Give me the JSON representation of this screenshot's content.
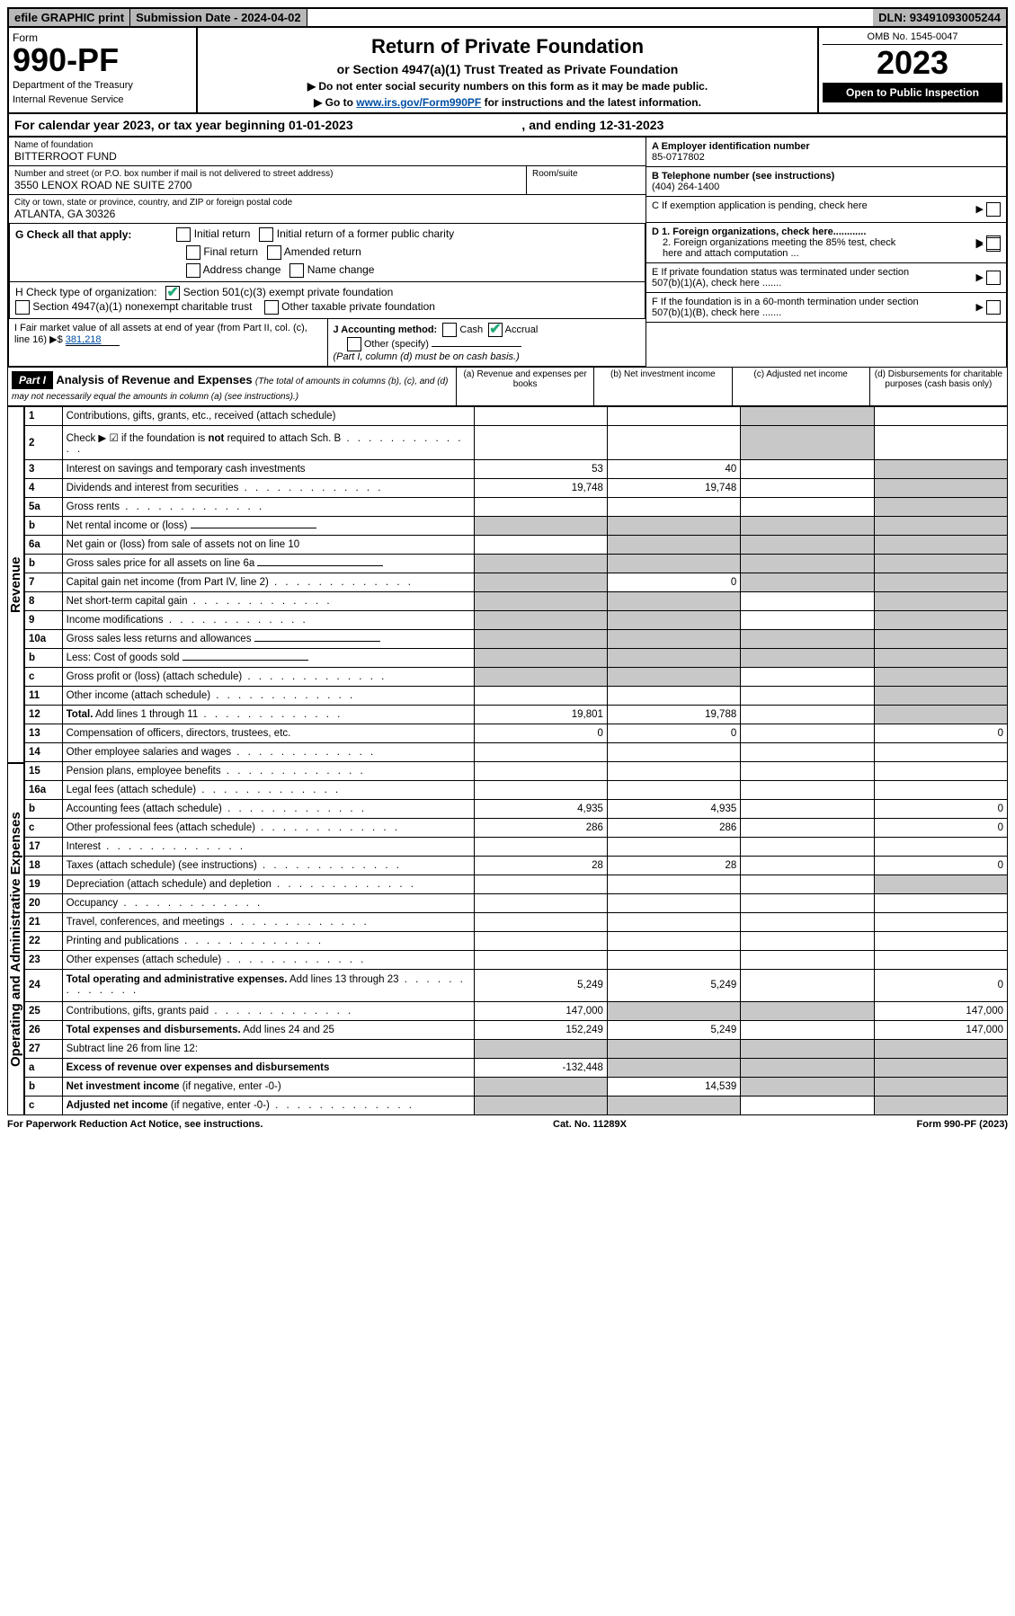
{
  "topbar": {
    "efile": "efile GRAPHIC print",
    "submission": "Submission Date - 2024-04-02",
    "dln": "DLN: 93491093005244"
  },
  "header": {
    "form_label": "Form",
    "form_no": "990-PF",
    "dept": "Department of the Treasury",
    "irs": "Internal Revenue Service",
    "title": "Return of Private Foundation",
    "subtitle": "or Section 4947(a)(1) Trust Treated as Private Foundation",
    "note1": "▶ Do not enter social security numbers on this form as it may be made public.",
    "note2_pre": "▶ Go to ",
    "note2_link": "www.irs.gov/Form990PF",
    "note2_post": " for instructions and the latest information.",
    "omb": "OMB No. 1545-0047",
    "year": "2023",
    "open": "Open to Public Inspection"
  },
  "calyear": {
    "pre": "For calendar year 2023, or tax year beginning ",
    "begin": "01-01-2023",
    "mid": " , and ending ",
    "end": "12-31-2023"
  },
  "info": {
    "name_lbl": "Name of foundation",
    "name": "BITTERROOT FUND",
    "addr_lbl": "Number and street (or P.O. box number if mail is not delivered to street address)",
    "addr": "3550 LENOX ROAD NE SUITE 2700",
    "room_lbl": "Room/suite",
    "city_lbl": "City or town, state or province, country, and ZIP or foreign postal code",
    "city": "ATLANTA, GA  30326",
    "a_lbl": "A Employer identification number",
    "a_val": "85-0717802",
    "b_lbl": "B Telephone number (see instructions)",
    "b_val": "(404) 264-1400",
    "c_lbl": "C If exemption application is pending, check here",
    "d1_lbl": "D 1. Foreign organizations, check here............",
    "d2_lbl": "2. Foreign organizations meeting the 85% test, check here and attach computation ...",
    "e_lbl": "E  If private foundation status was terminated under section 507(b)(1)(A), check here .......",
    "f_lbl": "F  If the foundation is in a 60-month termination under section 507(b)(1)(B), check here .......",
    "g_lbl": "G Check all that apply:",
    "g_opts": [
      "Initial return",
      "Initial return of a former public charity",
      "Final return",
      "Amended return",
      "Address change",
      "Name change"
    ],
    "h_lbl": "H Check type of organization:",
    "h_opt1": "Section 501(c)(3) exempt private foundation",
    "h_opt2": "Section 4947(a)(1) nonexempt charitable trust",
    "h_opt3": "Other taxable private foundation",
    "i_lbl": "I Fair market value of all assets at end of year (from Part II, col. (c), line 16)",
    "i_val": "381,218",
    "j_lbl": "J Accounting method:",
    "j_opts": [
      "Cash",
      "Accrual",
      "Other (specify)"
    ],
    "j_note": "(Part I, column (d) must be on cash basis.)"
  },
  "part1": {
    "label": "Part I",
    "title": "Analysis of Revenue and Expenses",
    "desc": "(The total of amounts in columns (b), (c), and (d) may not necessarily equal the amounts in column (a) (see instructions).)",
    "cols": {
      "a": "(a)   Revenue and expenses per books",
      "b": "(b)   Net investment income",
      "c": "(c)   Adjusted net income",
      "d": "(d)   Disbursements for charitable purposes (cash basis only)"
    }
  },
  "side": {
    "revenue": "Revenue",
    "expenses": "Operating and Administrative Expenses"
  },
  "rows": [
    {
      "n": "1",
      "d": "Contributions, gifts, grants, etc., received (attach schedule)",
      "a": "",
      "b": "",
      "c": "gray",
      "dd": ""
    },
    {
      "n": "2",
      "d": "Check ▶ ☑ if the foundation is <b>not</b> required to attach Sch. B",
      "dots": true,
      "a": "",
      "b": "",
      "c": "gray",
      "dd": "",
      "nob": true
    },
    {
      "n": "3",
      "d": "Interest on savings and temporary cash investments",
      "a": "53",
      "b": "40",
      "c": "",
      "dd": "gray"
    },
    {
      "n": "4",
      "d": "Dividends and interest from securities",
      "dots": true,
      "a": "19,748",
      "b": "19,748",
      "c": "",
      "dd": "gray"
    },
    {
      "n": "5a",
      "d": "Gross rents",
      "dots": true,
      "a": "",
      "b": "",
      "c": "",
      "dd": "gray"
    },
    {
      "n": "b",
      "d": "Net rental income or (loss)",
      "uline": true,
      "a": "gray",
      "b": "gray",
      "c": "gray",
      "dd": "gray"
    },
    {
      "n": "6a",
      "d": "Net gain or (loss) from sale of assets not on line 10",
      "a": "",
      "b": "gray",
      "c": "gray",
      "dd": "gray"
    },
    {
      "n": "b",
      "d": "Gross sales price for all assets on line 6a",
      "uline": true,
      "a": "gray",
      "b": "gray",
      "c": "gray",
      "dd": "gray"
    },
    {
      "n": "7",
      "d": "Capital gain net income (from Part IV, line 2)",
      "dots": true,
      "a": "gray",
      "b": "0",
      "c": "gray",
      "dd": "gray"
    },
    {
      "n": "8",
      "d": "Net short-term capital gain",
      "dots": true,
      "a": "gray",
      "b": "gray",
      "c": "",
      "dd": "gray"
    },
    {
      "n": "9",
      "d": "Income modifications",
      "dots": true,
      "a": "gray",
      "b": "gray",
      "c": "",
      "dd": "gray"
    },
    {
      "n": "10a",
      "d": "Gross sales less returns and allowances",
      "uline": true,
      "a": "gray",
      "b": "gray",
      "c": "gray",
      "dd": "gray"
    },
    {
      "n": "b",
      "d": "Less: Cost of goods sold",
      "dots": true,
      "uline": true,
      "a": "gray",
      "b": "gray",
      "c": "gray",
      "dd": "gray"
    },
    {
      "n": "c",
      "d": "Gross profit or (loss) (attach schedule)",
      "dots": true,
      "a": "gray",
      "b": "gray",
      "c": "",
      "dd": "gray"
    },
    {
      "n": "11",
      "d": "Other income (attach schedule)",
      "dots": true,
      "a": "",
      "b": "",
      "c": "",
      "dd": "gray"
    },
    {
      "n": "12",
      "d": "<b>Total.</b> Add lines 1 through 11",
      "dots": true,
      "a": "19,801",
      "b": "19,788",
      "c": "",
      "dd": "gray"
    },
    {
      "n": "13",
      "d": "Compensation of officers, directors, trustees, etc.",
      "a": "0",
      "b": "0",
      "c": "",
      "dd": "0"
    },
    {
      "n": "14",
      "d": "Other employee salaries and wages",
      "dots": true,
      "a": "",
      "b": "",
      "c": "",
      "dd": ""
    },
    {
      "n": "15",
      "d": "Pension plans, employee benefits",
      "dots": true,
      "a": "",
      "b": "",
      "c": "",
      "dd": ""
    },
    {
      "n": "16a",
      "d": "Legal fees (attach schedule)",
      "dots": true,
      "a": "",
      "b": "",
      "c": "",
      "dd": ""
    },
    {
      "n": "b",
      "d": "Accounting fees (attach schedule)",
      "dots": true,
      "a": "4,935",
      "b": "4,935",
      "c": "",
      "dd": "0"
    },
    {
      "n": "c",
      "d": "Other professional fees (attach schedule)",
      "dots": true,
      "a": "286",
      "b": "286",
      "c": "",
      "dd": "0"
    },
    {
      "n": "17",
      "d": "Interest",
      "dots": true,
      "a": "",
      "b": "",
      "c": "",
      "dd": ""
    },
    {
      "n": "18",
      "d": "Taxes (attach schedule) (see instructions)",
      "dots": true,
      "a": "28",
      "b": "28",
      "c": "",
      "dd": "0"
    },
    {
      "n": "19",
      "d": "Depreciation (attach schedule) and depletion",
      "dots": true,
      "a": "",
      "b": "",
      "c": "",
      "dd": "gray"
    },
    {
      "n": "20",
      "d": "Occupancy",
      "dots": true,
      "a": "",
      "b": "",
      "c": "",
      "dd": ""
    },
    {
      "n": "21",
      "d": "Travel, conferences, and meetings",
      "dots": true,
      "a": "",
      "b": "",
      "c": "",
      "dd": ""
    },
    {
      "n": "22",
      "d": "Printing and publications",
      "dots": true,
      "a": "",
      "b": "",
      "c": "",
      "dd": ""
    },
    {
      "n": "23",
      "d": "Other expenses (attach schedule)",
      "dots": true,
      "a": "",
      "b": "",
      "c": "",
      "dd": ""
    },
    {
      "n": "24",
      "d": "<b>Total operating and administrative expenses.</b> Add lines 13 through 23",
      "dots": true,
      "a": "5,249",
      "b": "5,249",
      "c": "",
      "dd": "0"
    },
    {
      "n": "25",
      "d": "Contributions, gifts, grants paid",
      "dots": true,
      "a": "147,000",
      "b": "gray",
      "c": "gray",
      "dd": "147,000"
    },
    {
      "n": "26",
      "d": "<b>Total expenses and disbursements.</b> Add lines 24 and 25",
      "a": "152,249",
      "b": "5,249",
      "c": "",
      "dd": "147,000"
    },
    {
      "n": "27",
      "d": "Subtract line 26 from line 12:",
      "a": "gray",
      "b": "gray",
      "c": "gray",
      "dd": "gray"
    },
    {
      "n": "a",
      "d": "<b>Excess of revenue over expenses and disbursements</b>",
      "a": "-132,448",
      "b": "gray",
      "c": "gray",
      "dd": "gray"
    },
    {
      "n": "b",
      "d": "<b>Net investment income</b> (if negative, enter -0-)",
      "a": "gray",
      "b": "14,539",
      "c": "gray",
      "dd": "gray"
    },
    {
      "n": "c",
      "d": "<b>Adjusted net income</b> (if negative, enter -0-)",
      "dots": true,
      "a": "gray",
      "b": "gray",
      "c": "",
      "dd": "gray"
    }
  ],
  "footer": {
    "left": "For Paperwork Reduction Act Notice, see instructions.",
    "mid": "Cat. No. 11289X",
    "right": "Form 990-PF (2023)"
  }
}
